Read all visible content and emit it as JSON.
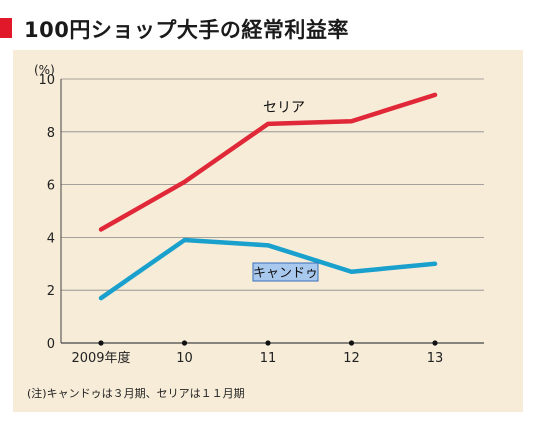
{
  "title": "100円ショップ大手の経常利益率",
  "note": "(注)キャンドゥは３月期、セリアは１１月期",
  "colors": {
    "title_marker": "#e0182a",
    "panel_background": "#f6ecd8",
    "seria": "#e02838",
    "cando": "#1aa0cc"
  },
  "chart_data": {
    "type": "line",
    "unit_label": "(%)",
    "categories": [
      "2009年度",
      "10",
      "11",
      "12",
      "13"
    ],
    "ylim": [
      0,
      10
    ],
    "yticks": [
      0,
      2,
      4,
      6,
      8,
      10
    ],
    "grid": true,
    "series": [
      {
        "name": "セリア",
        "color": "#e02838",
        "values": [
          4.3,
          6.1,
          8.3,
          8.4,
          9.4
        ],
        "label_box": false
      },
      {
        "name": "キャンドゥ",
        "color": "#1aa0cc",
        "values": [
          1.7,
          3.9,
          3.7,
          2.7,
          3.0
        ],
        "label_box": true
      }
    ]
  }
}
